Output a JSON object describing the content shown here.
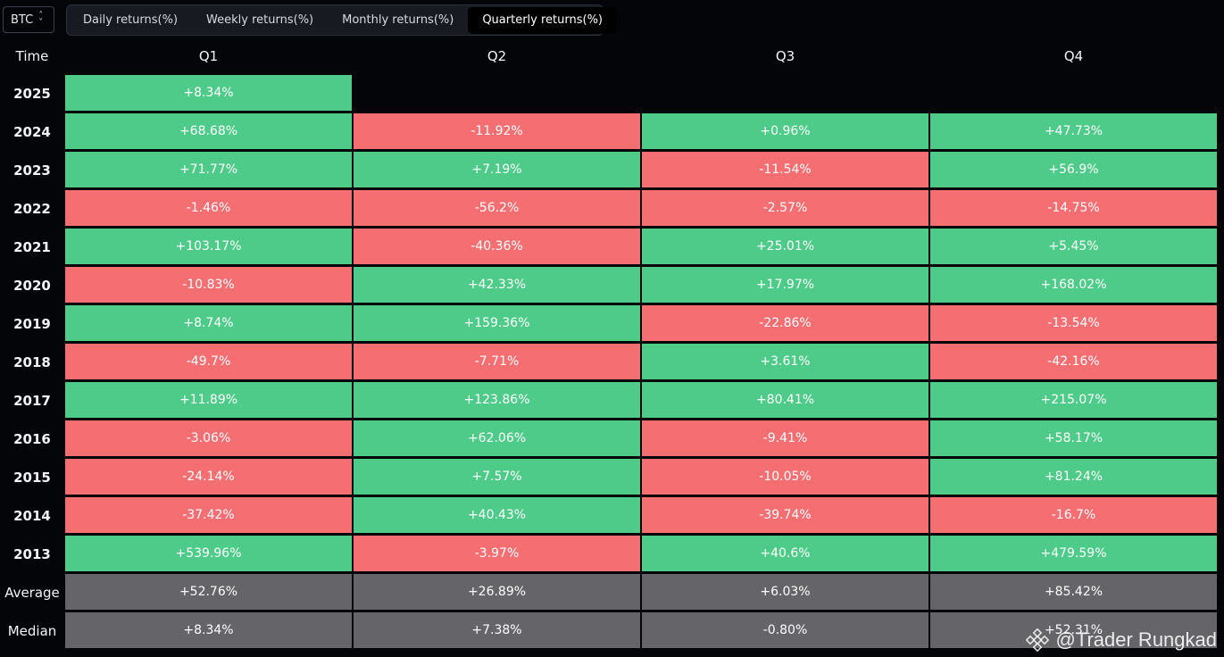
{
  "asset_selector": {
    "value": "BTC"
  },
  "tabs": [
    {
      "label": "Daily returns(%)",
      "active": false
    },
    {
      "label": "Weekly returns(%)",
      "active": false
    },
    {
      "label": "Monthly returns(%)",
      "active": false
    },
    {
      "label": "Quarterly returns(%)",
      "active": true
    }
  ],
  "table": {
    "headers": {
      "time": "Time",
      "q1": "Q1",
      "q2": "Q2",
      "q3": "Q3",
      "q4": "Q4"
    },
    "rows": [
      {
        "label": "2025",
        "values": [
          "+8.34%",
          "",
          "",
          ""
        ]
      },
      {
        "label": "2024",
        "values": [
          "+68.68%",
          "-11.92%",
          "+0.96%",
          "+47.73%"
        ]
      },
      {
        "label": "2023",
        "values": [
          "+71.77%",
          "+7.19%",
          "-11.54%",
          "+56.9%"
        ]
      },
      {
        "label": "2022",
        "values": [
          "-1.46%",
          "-56.2%",
          "-2.57%",
          "-14.75%"
        ]
      },
      {
        "label": "2021",
        "values": [
          "+103.17%",
          "-40.36%",
          "+25.01%",
          "+5.45%"
        ]
      },
      {
        "label": "2020",
        "values": [
          "-10.83%",
          "+42.33%",
          "+17.97%",
          "+168.02%"
        ]
      },
      {
        "label": "2019",
        "values": [
          "+8.74%",
          "+159.36%",
          "-22.86%",
          "-13.54%"
        ]
      },
      {
        "label": "2018",
        "values": [
          "-49.7%",
          "-7.71%",
          "+3.61%",
          "-42.16%"
        ]
      },
      {
        "label": "2017",
        "values": [
          "+11.89%",
          "+123.86%",
          "+80.41%",
          "+215.07%"
        ]
      },
      {
        "label": "2016",
        "values": [
          "-3.06%",
          "+62.06%",
          "-9.41%",
          "+58.17%"
        ]
      },
      {
        "label": "2015",
        "values": [
          "-24.14%",
          "+7.57%",
          "-10.05%",
          "+81.24%"
        ]
      },
      {
        "label": "2014",
        "values": [
          "-37.42%",
          "+40.43%",
          "-39.74%",
          "-16.7%"
        ]
      },
      {
        "label": "2013",
        "values": [
          "+539.96%",
          "-3.97%",
          "+40.6%",
          "+479.59%"
        ]
      }
    ],
    "average": {
      "label": "Average",
      "values": [
        "+52.76%",
        "+26.89%",
        "+6.03%",
        "+85.42%"
      ]
    },
    "median": {
      "label": "Median",
      "values": [
        "+8.34%",
        "+7.38%",
        "-0.80%",
        "+52.31%"
      ]
    }
  },
  "colors": {
    "positive": "#4fcb89",
    "negative": "#f56f72",
    "stat": "#656569",
    "background": "#040509"
  },
  "watermark": {
    "text": "@Trader Rungkad",
    "icon": "binance-logo-icon"
  }
}
